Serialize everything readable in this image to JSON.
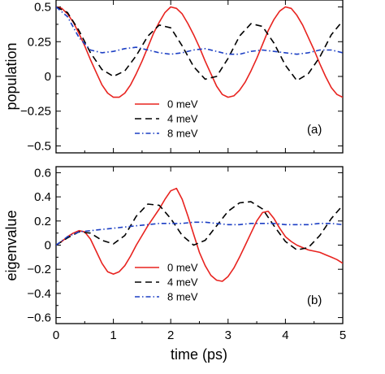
{
  "chart_data": [
    {
      "type": "line",
      "panel_label": "(a)",
      "xlabel": "",
      "ylabel": "population",
      "xlim": [
        0,
        5
      ],
      "ylim": [
        -0.55,
        0.55
      ],
      "xticks": [
        0,
        1,
        2,
        3,
        4,
        5
      ],
      "yticks": [
        0.5,
        0.25,
        0,
        -0.25,
        -0.5
      ],
      "ytick_labels": [
        "0.5",
        "0.25",
        "0",
        "−0.25",
        "−0.5"
      ],
      "legend_position": "bottom-center",
      "series": [
        {
          "name": "0 meV",
          "color": "#e8231f",
          "dash": "solid",
          "x": [
            0,
            0.1,
            0.2,
            0.3,
            0.4,
            0.5,
            0.6,
            0.7,
            0.8,
            0.9,
            1.0,
            1.1,
            1.2,
            1.3,
            1.4,
            1.5,
            1.6,
            1.7,
            1.8,
            1.9,
            2.0,
            2.1,
            2.2,
            2.3,
            2.4,
            2.5,
            2.6,
            2.7,
            2.8,
            2.9,
            3.0,
            3.1,
            3.2,
            3.3,
            3.4,
            3.5,
            3.6,
            3.7,
            3.8,
            3.9,
            4.0,
            4.1,
            4.2,
            4.3,
            4.4,
            4.5,
            4.6,
            4.7,
            4.8,
            4.9,
            5.0
          ],
          "y": [
            0.5,
            0.49,
            0.45,
            0.39,
            0.31,
            0.22,
            0.12,
            0.03,
            -0.06,
            -0.12,
            -0.15,
            -0.15,
            -0.12,
            -0.06,
            0.02,
            0.11,
            0.21,
            0.31,
            0.39,
            0.46,
            0.5,
            0.49,
            0.45,
            0.38,
            0.3,
            0.21,
            0.11,
            0.02,
            -0.07,
            -0.13,
            -0.15,
            -0.14,
            -0.1,
            -0.04,
            0.04,
            0.13,
            0.23,
            0.33,
            0.41,
            0.47,
            0.5,
            0.49,
            0.44,
            0.37,
            0.28,
            0.19,
            0.09,
            0.0,
            -0.08,
            -0.13,
            -0.15
          ]
        },
        {
          "name": "4 meV",
          "color": "#000000",
          "dash": "dashed",
          "x": [
            0,
            0.2,
            0.4,
            0.6,
            0.8,
            1.0,
            1.2,
            1.4,
            1.6,
            1.8,
            2.0,
            2.2,
            2.4,
            2.6,
            2.8,
            3.0,
            3.2,
            3.4,
            3.6,
            3.8,
            4.0,
            4.2,
            4.4,
            4.6,
            4.8,
            5.0
          ],
          "y": [
            0.5,
            0.46,
            0.33,
            0.17,
            0.05,
            0.0,
            0.04,
            0.15,
            0.29,
            0.37,
            0.35,
            0.22,
            0.07,
            -0.02,
            0.0,
            0.13,
            0.29,
            0.38,
            0.36,
            0.24,
            0.08,
            -0.03,
            0.02,
            0.14,
            0.3,
            0.4
          ]
        },
        {
          "name": "8 meV",
          "color": "#1c3fc4",
          "dash": "dash-dot",
          "x": [
            0,
            0.2,
            0.4,
            0.6,
            0.8,
            1.0,
            1.2,
            1.4,
            1.6,
            1.8,
            2.0,
            2.2,
            2.4,
            2.6,
            2.8,
            3.0,
            3.2,
            3.4,
            3.6,
            3.8,
            4.0,
            4.2,
            4.4,
            4.6,
            4.8,
            5.0
          ],
          "y": [
            0.5,
            0.43,
            0.28,
            0.19,
            0.17,
            0.18,
            0.2,
            0.21,
            0.19,
            0.17,
            0.16,
            0.17,
            0.19,
            0.2,
            0.18,
            0.16,
            0.16,
            0.18,
            0.19,
            0.18,
            0.17,
            0.16,
            0.17,
            0.19,
            0.19,
            0.17
          ]
        }
      ]
    },
    {
      "type": "line",
      "panel_label": "(b)",
      "xlabel": "time (ps)",
      "ylabel": "eigenvalue",
      "xlim": [
        0,
        5
      ],
      "ylim": [
        -0.65,
        0.65
      ],
      "xticks": [
        0,
        1,
        2,
        3,
        4,
        5
      ],
      "yticks": [
        0.6,
        0.4,
        0.2,
        0,
        -0.2,
        -0.4,
        -0.6
      ],
      "ytick_labels": [
        "0.6",
        "0.4",
        "0.2",
        "0",
        "−0.2",
        "−0.4",
        "−0.6"
      ],
      "legend_position": "bottom-center",
      "series": [
        {
          "name": "0 meV",
          "color": "#e8231f",
          "dash": "solid",
          "x": [
            0,
            0.1,
            0.2,
            0.3,
            0.4,
            0.5,
            0.6,
            0.7,
            0.8,
            0.9,
            1.0,
            1.1,
            1.2,
            1.3,
            1.4,
            1.5,
            1.6,
            1.7,
            1.8,
            1.9,
            2.0,
            2.1,
            2.2,
            2.3,
            2.4,
            2.5,
            2.6,
            2.7,
            2.8,
            2.9,
            3.0,
            3.1,
            3.2,
            3.3,
            3.4,
            3.5,
            3.6,
            3.7,
            3.8,
            3.9,
            4.0,
            4.1,
            4.2,
            4.3,
            4.4,
            4.5,
            4.6,
            4.7,
            4.8,
            4.9,
            5.0
          ],
          "y": [
            0.0,
            0.03,
            0.07,
            0.1,
            0.12,
            0.11,
            0.05,
            -0.05,
            -0.15,
            -0.22,
            -0.24,
            -0.22,
            -0.17,
            -0.09,
            0.0,
            0.08,
            0.16,
            0.23,
            0.3,
            0.38,
            0.45,
            0.47,
            0.38,
            0.24,
            0.09,
            -0.06,
            -0.17,
            -0.25,
            -0.29,
            -0.3,
            -0.26,
            -0.19,
            -0.1,
            0.0,
            0.1,
            0.2,
            0.27,
            0.28,
            0.22,
            0.14,
            0.07,
            0.03,
            0.0,
            -0.02,
            -0.04,
            -0.05,
            -0.06,
            -0.08,
            -0.1,
            -0.12,
            -0.15
          ]
        },
        {
          "name": "4 meV",
          "color": "#000000",
          "dash": "dashed",
          "x": [
            0,
            0.2,
            0.4,
            0.6,
            0.8,
            1.0,
            1.2,
            1.4,
            1.6,
            1.8,
            2.0,
            2.2,
            2.4,
            2.6,
            2.8,
            3.0,
            3.2,
            3.4,
            3.6,
            3.8,
            4.0,
            4.2,
            4.4,
            4.6,
            4.8,
            5.0
          ],
          "y": [
            0.0,
            0.06,
            0.11,
            0.1,
            0.04,
            0.01,
            0.08,
            0.24,
            0.34,
            0.33,
            0.22,
            0.08,
            0.0,
            0.04,
            0.16,
            0.28,
            0.35,
            0.36,
            0.3,
            0.16,
            0.03,
            -0.04,
            -0.02,
            0.08,
            0.22,
            0.33
          ]
        },
        {
          "name": "8 meV",
          "color": "#1c3fc4",
          "dash": "dash-dot",
          "x": [
            0,
            0.2,
            0.4,
            0.6,
            0.8,
            1.0,
            1.2,
            1.4,
            1.6,
            1.8,
            2.0,
            2.2,
            2.4,
            2.6,
            2.8,
            3.0,
            3.2,
            3.4,
            3.6,
            3.8,
            4.0,
            4.2,
            4.4,
            4.6,
            4.8,
            5.0
          ],
          "y": [
            0.0,
            0.07,
            0.11,
            0.12,
            0.13,
            0.14,
            0.15,
            0.16,
            0.17,
            0.18,
            0.18,
            0.18,
            0.19,
            0.19,
            0.18,
            0.17,
            0.17,
            0.18,
            0.18,
            0.18,
            0.17,
            0.17,
            0.17,
            0.18,
            0.18,
            0.17
          ]
        }
      ]
    }
  ]
}
